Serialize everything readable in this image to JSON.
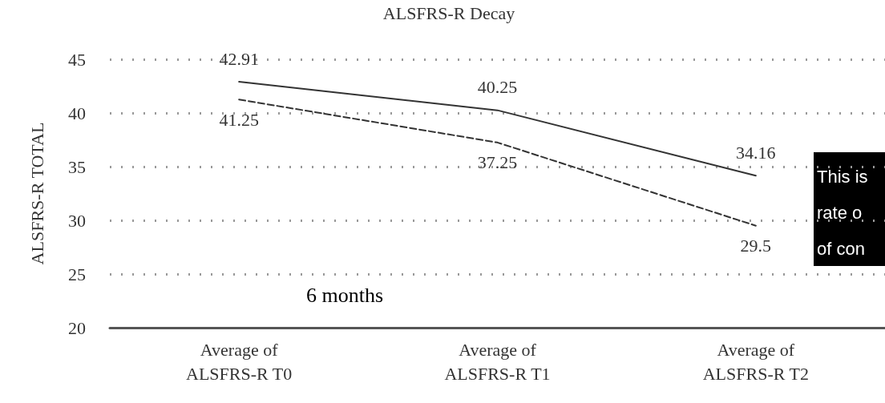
{
  "chart_data": {
    "type": "line",
    "title": "ALSFRS-R Decay",
    "ylabel": "ALSFRS-R TOTAL",
    "categories": [
      "Average of\nALSFRS-R T0",
      "Average of\nALSFRS-R T1",
      "Average of\nALSFRS-R T2"
    ],
    "series": [
      {
        "color": "#333333",
        "line_style": "solid",
        "values": [
          42.91,
          40.25,
          34.16
        ]
      },
      {
        "color": "#333333",
        "line_style": "dashed",
        "values": [
          41.25,
          37.25,
          29.5
        ]
      }
    ],
    "ylim": [
      20,
      45
    ],
    "yticks": [
      20,
      25,
      30,
      35,
      40,
      45
    ],
    "grid": "y",
    "marker": "none",
    "data_labels": true,
    "annotations": [
      "6 months",
      "This is\nrate o\nof con"
    ]
  }
}
